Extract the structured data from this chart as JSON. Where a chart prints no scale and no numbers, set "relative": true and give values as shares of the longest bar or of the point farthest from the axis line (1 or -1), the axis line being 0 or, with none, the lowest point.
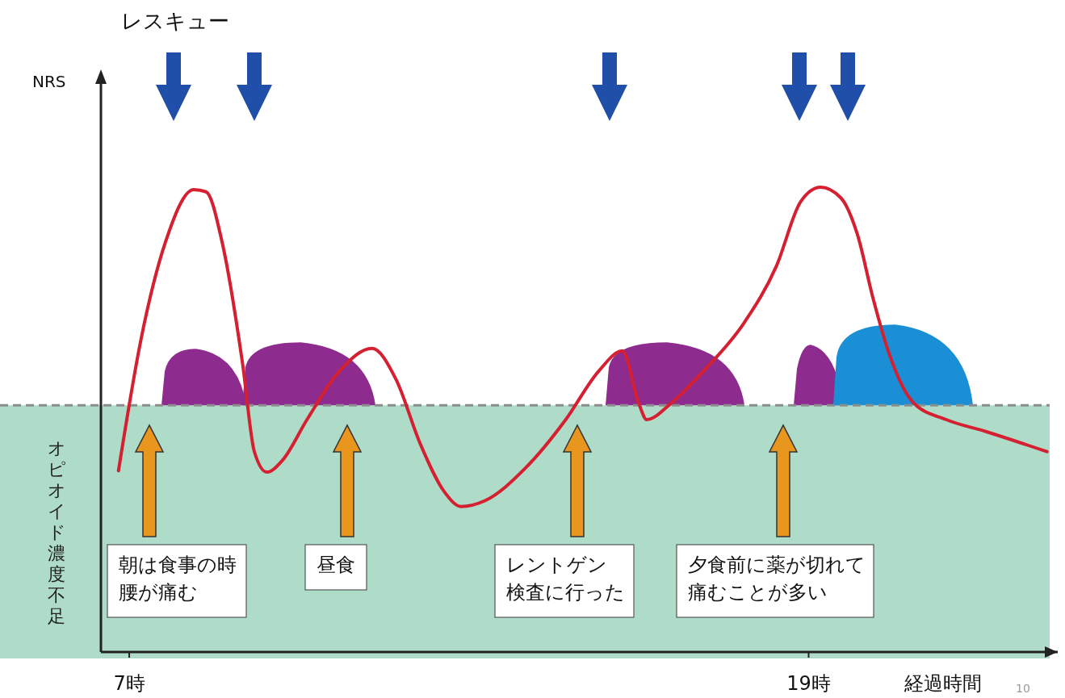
{
  "chart_data": {
    "type": "line",
    "title": "レスキュー",
    "xlabel": "経過時間",
    "relative": true,
    "xlim": [
      6.5,
      23.4
    ],
    "xticks": [
      {
        "value": 7,
        "label": "7時"
      },
      {
        "value": 19,
        "label": "19時"
      }
    ],
    "x": [
      6.81,
      7.21,
      7.64,
      8.14,
      8.36,
      8.64,
      9.0,
      9.21,
      9.43,
      9.71,
      10.14,
      10.71,
      11.29,
      11.71,
      12.14,
      12.57,
      12.86,
      13.29,
      14.0,
      14.71,
      15.29,
      15.71,
      16.0,
      16.14,
      16.57,
      17.14,
      17.86,
      18.43,
      18.86,
      19.21,
      19.57,
      19.86,
      20.14,
      20.43,
      20.86,
      21.43,
      22.14,
      23.21
    ],
    "series": [
      {
        "color": "#d42030",
        "values": [
          0.39,
          0.674,
          0.882,
          0.995,
          0.99,
          0.882,
          0.622,
          0.431,
          0.387,
          0.413,
          0.5,
          0.604,
          0.653,
          0.587,
          0.448,
          0.344,
          0.313,
          0.326,
          0.396,
          0.5,
          0.604,
          0.648,
          0.535,
          0.5,
          0.535,
          0.604,
          0.708,
          0.83,
          0.969,
          1.0,
          0.977,
          0.899,
          0.76,
          0.639,
          0.535,
          0.5,
          0.474,
          0.431
        ]
      }
    ],
    "bands": [
      {
        "axis": "y",
        "from": 0,
        "to": 0.531,
        "label": "オピオイド濃度不足",
        "color": "#aedcc8"
      }
    ],
    "ref_lines": [
      {
        "axis": "y",
        "value": 0.531,
        "color": "#8c8c8c",
        "line_style": "dashed"
      }
    ],
    "annotations": [
      "朝は食事の時腰が痛む",
      "昼食",
      "レントゲン検査に行った",
      "夕食前に薬が切れて痛むことが多い",
      "10",
      "NRS"
    ],
    "grid": false,
    "marker": "none",
    "line_style": "solid"
  }
}
